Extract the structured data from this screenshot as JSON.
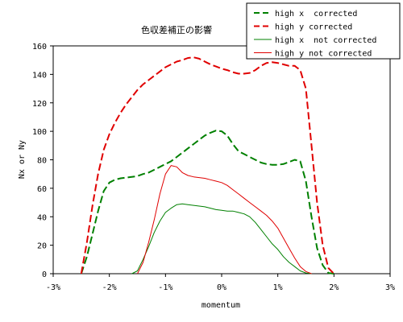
{
  "chart_data": {
    "type": "line",
    "title": "色収差補正の影響",
    "xlabel": "momentum",
    "ylabel": "Nx or Ny",
    "xlim": [
      -3,
      3
    ],
    "ylim": [
      0,
      160
    ],
    "x_ticks": [
      -3,
      -2,
      -1,
      0,
      1,
      2,
      3
    ],
    "x_tick_labels": [
      "-3%",
      "-2%",
      "-1%",
      "0%",
      "1%",
      "2%",
      "3%"
    ],
    "y_ticks": [
      0,
      20,
      40,
      60,
      80,
      100,
      120,
      140,
      160
    ],
    "y_tick_labels": [
      "0",
      "20",
      "40",
      "60",
      "80",
      "100",
      "120",
      "140",
      "160"
    ],
    "grid": false,
    "legend_position": "top-right",
    "series": [
      {
        "name": "high x  corrected",
        "color": "#008000",
        "dash": "dashed",
        "width": 2,
        "x": [
          -2.5,
          -2.4,
          -2.3,
          -2.2,
          -2.1,
          -2.0,
          -1.9,
          -1.8,
          -1.7,
          -1.6,
          -1.5,
          -1.4,
          -1.3,
          -1.2,
          -1.1,
          -1.0,
          -0.9,
          -0.8,
          -0.7,
          -0.6,
          -0.5,
          -0.4,
          -0.3,
          -0.2,
          -0.1,
          0.0,
          0.1,
          0.2,
          0.3,
          0.4,
          0.5,
          0.6,
          0.7,
          0.8,
          0.9,
          1.0,
          1.1,
          1.2,
          1.3,
          1.4,
          1.5,
          1.6,
          1.7,
          1.8,
          1.9,
          2.0
        ],
        "y": [
          0,
          12,
          28,
          44,
          58,
          64,
          66,
          67,
          67.5,
          68,
          68.5,
          70,
          71,
          73,
          75,
          77,
          79,
          82,
          85,
          88,
          91,
          94,
          97,
          99,
          100.5,
          100,
          97,
          91,
          86,
          84,
          82,
          80,
          78,
          77,
          76.5,
          76.5,
          77,
          78.5,
          80,
          79,
          65,
          40,
          18,
          6,
          0.5,
          0
        ]
      },
      {
        "name": "high y corrected",
        "color": "#e00000",
        "dash": "dashed",
        "width": 2,
        "x": [
          -2.5,
          -2.4,
          -2.3,
          -2.2,
          -2.1,
          -2.0,
          -1.9,
          -1.8,
          -1.7,
          -1.6,
          -1.5,
          -1.4,
          -1.3,
          -1.2,
          -1.1,
          -1.0,
          -0.9,
          -0.8,
          -0.7,
          -0.6,
          -0.5,
          -0.4,
          -0.3,
          -0.2,
          -0.1,
          0.0,
          0.1,
          0.2,
          0.3,
          0.4,
          0.5,
          0.6,
          0.7,
          0.8,
          0.9,
          1.0,
          1.1,
          1.2,
          1.3,
          1.4,
          1.5,
          1.6,
          1.7,
          1.8,
          1.9,
          2.0
        ],
        "y": [
          0,
          22,
          48,
          70,
          87,
          98,
          106,
          113,
          119,
          124,
          129,
          133,
          136,
          139,
          142,
          145,
          147,
          149,
          150,
          151.5,
          152,
          151,
          149,
          147,
          145.5,
          144,
          143,
          141.5,
          140.5,
          140.5,
          141,
          143,
          146,
          148,
          148.5,
          148,
          147,
          146,
          146,
          143,
          130,
          90,
          50,
          20,
          4,
          0
        ]
      },
      {
        "name": "high x  not corrected",
        "color": "#008000",
        "dash": "solid",
        "width": 1,
        "x": [
          -1.6,
          -1.5,
          -1.4,
          -1.3,
          -1.2,
          -1.1,
          -1.0,
          -0.9,
          -0.8,
          -0.7,
          -0.6,
          -0.5,
          -0.4,
          -0.3,
          -0.2,
          -0.1,
          0.0,
          0.1,
          0.2,
          0.3,
          0.4,
          0.5,
          0.6,
          0.7,
          0.8,
          0.9,
          1.0,
          1.1,
          1.2,
          1.3,
          1.4,
          1.5,
          1.6
        ],
        "y": [
          0,
          2,
          10,
          19,
          29,
          37,
          43,
          46,
          48.5,
          49,
          48.5,
          48,
          47.5,
          47,
          46,
          45,
          44.5,
          44,
          44,
          43,
          42,
          40,
          36,
          31,
          26,
          21,
          17,
          12,
          8,
          5,
          2,
          0.5,
          0
        ]
      },
      {
        "name": "high y not corrected",
        "color": "#e00000",
        "dash": "solid",
        "width": 1,
        "x": [
          -1.5,
          -1.4,
          -1.3,
          -1.2,
          -1.1,
          -1.0,
          -0.9,
          -0.8,
          -0.7,
          -0.6,
          -0.5,
          -0.4,
          -0.3,
          -0.2,
          -0.1,
          0.0,
          0.1,
          0.2,
          0.3,
          0.4,
          0.5,
          0.6,
          0.7,
          0.8,
          0.9,
          1.0,
          1.1,
          1.2,
          1.3,
          1.4,
          1.5,
          1.6
        ],
        "y": [
          0,
          8,
          22,
          38,
          56,
          70,
          76,
          75,
          71,
          69,
          68,
          67.5,
          67,
          66,
          65,
          64,
          62,
          59,
          56,
          53,
          50,
          47,
          44,
          41,
          37,
          32,
          25,
          18,
          11,
          5,
          1.5,
          0
        ]
      }
    ]
  }
}
